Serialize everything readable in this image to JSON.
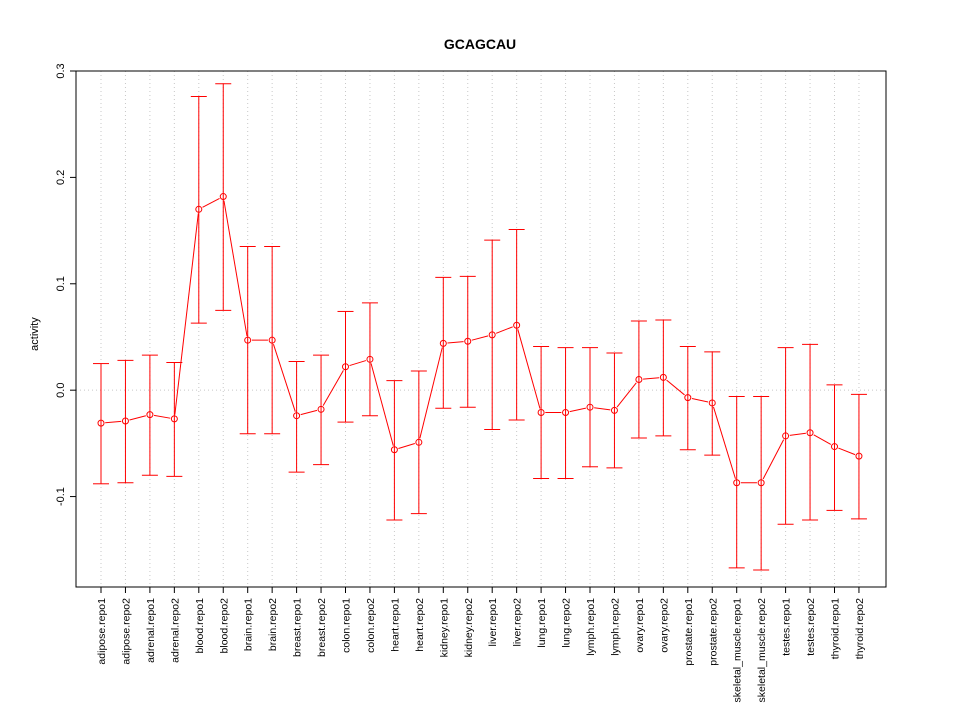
{
  "chart_data": {
    "type": "line",
    "title": "GCAGCAU",
    "xlabel": "",
    "ylabel": "activity",
    "ylim": [
      -0.185,
      0.3
    ],
    "yticks": [
      -0.1,
      0.0,
      0.1,
      0.2,
      0.3
    ],
    "ytick_labels": [
      "-0.1",
      "0.0",
      "0.1",
      "0.2",
      "0.3"
    ],
    "grid": true,
    "color": "#ff0000",
    "grid_color": "#c8c8c8",
    "categories": [
      "adipose.repo1",
      "adipose.repo2",
      "adrenal.repo1",
      "adrenal.repo2",
      "blood.repo1",
      "blood.repo2",
      "brain.repo1",
      "brain.repo2",
      "breast.repo1",
      "breast.repo2",
      "colon.repo1",
      "colon.repo2",
      "heart.repo1",
      "heart.repo2",
      "kidney.repo1",
      "kidney.repo2",
      "liver.repo1",
      "liver.repo2",
      "lung.repo1",
      "lung.repo2",
      "lymph.repo1",
      "lymph.repo2",
      "ovary.repo1",
      "ovary.repo2",
      "prostate.repo1",
      "prostate.repo2",
      "skeletal_muscle.repo1",
      "skeletal_muscle.repo2",
      "testes.repo1",
      "testes.repo2",
      "thyroid.repo1",
      "thyroid.repo2"
    ],
    "series": [
      {
        "name": "activity",
        "values": [
          -0.031,
          -0.029,
          -0.023,
          -0.027,
          0.17,
          0.182,
          0.047,
          0.047,
          -0.024,
          -0.018,
          0.022,
          0.029,
          -0.056,
          -0.049,
          0.044,
          0.046,
          0.052,
          0.061,
          -0.021,
          -0.021,
          -0.016,
          -0.019,
          0.01,
          0.012,
          -0.007,
          -0.012,
          -0.087,
          -0.087,
          -0.043,
          -0.04,
          -0.053,
          -0.062
        ],
        "lower": [
          -0.088,
          -0.087,
          -0.08,
          -0.081,
          0.063,
          0.075,
          -0.041,
          -0.041,
          -0.077,
          -0.07,
          -0.03,
          -0.024,
          -0.122,
          -0.116,
          -0.017,
          -0.016,
          -0.037,
          -0.028,
          -0.083,
          -0.083,
          -0.072,
          -0.073,
          -0.045,
          -0.043,
          -0.056,
          -0.061,
          -0.167,
          -0.169,
          -0.126,
          -0.122,
          -0.113,
          -0.121
        ],
        "upper": [
          0.025,
          0.028,
          0.033,
          0.026,
          0.276,
          0.288,
          0.135,
          0.135,
          0.027,
          0.033,
          0.074,
          0.082,
          0.009,
          0.018,
          0.106,
          0.107,
          0.141,
          0.151,
          0.041,
          0.04,
          0.04,
          0.035,
          0.065,
          0.066,
          0.041,
          0.036,
          -0.006,
          -0.006,
          0.04,
          0.043,
          0.005,
          -0.004
        ]
      }
    ]
  }
}
